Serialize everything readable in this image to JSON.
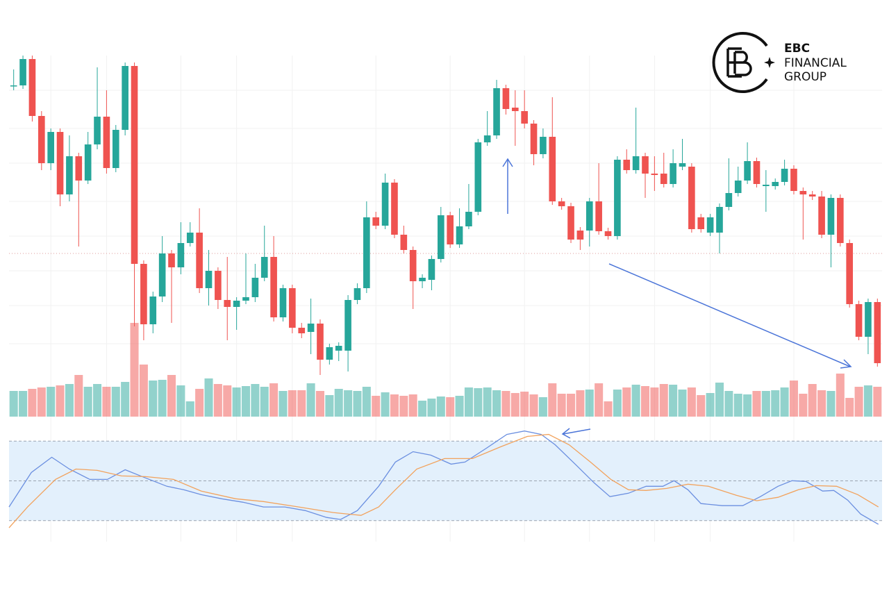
{
  "logo": {
    "name": "EBC",
    "line1": "FINANCIAL",
    "line2": "GROUP"
  },
  "chart_data": [
    {
      "type": "candlestick",
      "up_color": "#26a69a",
      "down_color": "#ef5350",
      "grid": true,
      "xlim": [
        -0.5,
        93.5
      ],
      "xticks": [
        4,
        10,
        18,
        24,
        30,
        39,
        47,
        55,
        62,
        69,
        75,
        84
      ],
      "ylim": [
        0,
        520
      ],
      "yticks": [
        105,
        160,
        210,
        260,
        310,
        365,
        415,
        470
      ],
      "price_line": 235,
      "open": [
        476,
        477,
        515,
        433,
        365,
        410,
        320,
        375,
        340,
        392,
        432,
        358,
        413,
        505,
        220,
        133,
        173,
        235,
        215,
        250,
        265,
        185,
        210,
        168,
        158,
        167,
        172,
        200,
        230,
        143,
        185,
        128,
        122,
        134,
        82,
        95,
        95,
        168,
        185,
        287,
        275,
        337,
        262,
        240,
        195,
        197,
        227,
        290,
        248,
        274,
        295,
        395,
        405,
        473,
        445,
        440,
        422,
        378,
        403,
        310,
        303,
        268,
        268,
        310,
        267,
        260,
        370,
        355,
        375,
        350,
        350,
        335,
        360,
        360,
        287,
        265,
        265,
        302,
        322,
        340,
        368,
        332,
        332,
        338,
        357,
        325,
        320,
        317,
        262,
        315,
        250,
        162,
        115,
        165
      ],
      "high": [
        500,
        520,
        520,
        440,
        415,
        415,
        405,
        380,
        410,
        503,
        470,
        420,
        510,
        510,
        225,
        180,
        260,
        240,
        280,
        280,
        300,
        240,
        215,
        230,
        172,
        235,
        220,
        275,
        260,
        190,
        190,
        135,
        170,
        140,
        105,
        107,
        175,
        192,
        310,
        295,
        350,
        342,
        275,
        245,
        205,
        232,
        302,
        295,
        300,
        335,
        400,
        440,
        485,
        478,
        470,
        470,
        427,
        415,
        460,
        315,
        308,
        273,
        315,
        365,
        272,
        375,
        385,
        445,
        380,
        375,
        380,
        385,
        400,
        365,
        292,
        292,
        307,
        372,
        360,
        395,
        373,
        355,
        343,
        370,
        362,
        330,
        325,
        325,
        320,
        320,
        255,
        167,
        170,
        170
      ],
      "low": [
        470,
        472,
        425,
        355,
        355,
        303,
        310,
        245,
        335,
        385,
        350,
        352,
        405,
        130,
        110,
        120,
        165,
        135,
        205,
        245,
        178,
        160,
        155,
        110,
        125,
        162,
        165,
        195,
        137,
        137,
        120,
        113,
        90,
        60,
        75,
        80,
        65,
        162,
        178,
        270,
        270,
        257,
        235,
        155,
        185,
        182,
        222,
        243,
        243,
        270,
        290,
        390,
        400,
        435,
        390,
        415,
        362,
        372,
        305,
        298,
        250,
        240,
        245,
        262,
        255,
        255,
        350,
        350,
        315,
        325,
        330,
        330,
        355,
        265,
        265,
        260,
        235,
        297,
        317,
        335,
        330,
        295,
        327,
        333,
        320,
        255,
        312,
        257,
        215,
        245,
        157,
        110,
        90,
        72
      ],
      "close": [
        477,
        515,
        433,
        365,
        410,
        320,
        375,
        340,
        392,
        432,
        358,
        413,
        505,
        220,
        133,
        173,
        235,
        215,
        250,
        265,
        185,
        210,
        168,
        158,
        167,
        172,
        200,
        230,
        143,
        185,
        128,
        120,
        134,
        82,
        100,
        102,
        168,
        185,
        287,
        275,
        337,
        262,
        240,
        195,
        200,
        227,
        290,
        248,
        274,
        295,
        395,
        405,
        473,
        443,
        440,
        422,
        378,
        403,
        310,
        303,
        255,
        255,
        310,
        267,
        260,
        370,
        355,
        375,
        350,
        348,
        335,
        365,
        365,
        270,
        270,
        287,
        302,
        322,
        340,
        368,
        335,
        334,
        338,
        357,
        325,
        320,
        317,
        262,
        315,
        250,
        162,
        115,
        165,
        77
      ]
    },
    {
      "type": "volume",
      "up_color": "#26a69a",
      "down_color": "#ef5350",
      "xlim": [
        -0.5,
        93.5
      ],
      "ylim": [
        0,
        520
      ],
      "values": [
        37,
        37,
        40,
        42,
        43,
        45,
        47,
        60,
        43,
        47,
        43,
        43,
        50,
        135,
        75,
        52,
        53,
        60,
        45,
        22,
        40,
        55,
        47,
        45,
        42,
        44,
        47,
        43,
        48,
        37,
        38,
        38,
        48,
        37,
        31,
        40,
        38,
        37,
        43,
        30,
        35,
        32,
        30,
        32,
        23,
        26,
        29,
        28,
        30,
        42,
        41,
        42,
        38,
        37,
        34,
        36,
        32,
        28,
        48,
        33,
        33,
        38,
        39,
        48,
        22,
        39,
        42,
        46,
        44,
        42,
        47,
        46,
        39,
        42,
        31,
        34,
        49,
        37,
        33,
        32,
        37,
        37,
        38,
        42,
        52,
        33,
        47,
        38,
        37,
        62,
        27,
        43,
        45,
        43
      ]
    },
    {
      "type": "line",
      "xlim": [
        -0.5,
        93.5
      ],
      "ylim": [
        0,
        100
      ],
      "yticks": [
        20,
        50,
        80
      ],
      "band": [
        20,
        80
      ],
      "band_color": "#e3f0fc",
      "series": [
        {
          "color": "#6b8fe0",
          "x": [
            -0.5,
            1.9,
            4.1,
            6.0,
            8.2,
            10.1,
            12.0,
            14.2,
            16.5,
            18.3,
            20.2,
            22.4,
            24.7,
            26.9,
            29.2,
            31.4,
            33.7,
            35.2,
            37.0,
            39.3,
            41.1,
            43.0,
            44.9,
            47.1,
            48.6,
            50.9,
            53.1,
            55.0,
            56.8,
            58.3,
            60.6,
            62.5,
            64.2,
            66.2,
            68.1,
            69.9,
            71.1,
            72.6,
            74.0,
            76.3,
            78.5,
            80.4,
            82.3,
            83.8,
            85.3,
            87.1,
            88.3,
            89.8,
            91.2,
            93.1
          ],
          "values": [
            30.3,
            56.3,
            67.8,
            58.9,
            51.1,
            51.1,
            58.4,
            52.2,
            45.9,
            43.3,
            39.6,
            36.5,
            33.9,
            30.3,
            30.3,
            27.6,
            22.4,
            20.9,
            27.6,
            45.9,
            64.2,
            72.0,
            69.4,
            62.6,
            64.2,
            74.6,
            85.0,
            87.6,
            85.0,
            77.2,
            61.6,
            48.5,
            38.1,
            40.7,
            45.9,
            45.9,
            50.1,
            43.3,
            32.9,
            31.3,
            31.3,
            38.1,
            45.9,
            50.1,
            49.6,
            42.3,
            42.8,
            35.5,
            25.0,
            17.2
          ]
        },
        {
          "color": "#f2a25c",
          "x": [
            -0.5,
            1.5,
            4.5,
            6.7,
            9.0,
            11.6,
            14.2,
            17.2,
            20.2,
            23.9,
            26.9,
            30.7,
            34.4,
            37.4,
            39.3,
            41.1,
            43.4,
            46.4,
            49.4,
            52.4,
            55.3,
            57.6,
            59.8,
            62.1,
            64.3,
            66.2,
            68.1,
            70.3,
            72.6,
            74.8,
            77.8,
            80.0,
            82.3,
            84.5,
            86.4,
            88.6,
            90.9,
            93.1
          ],
          "values": [
            14.6,
            30.3,
            51.1,
            58.9,
            57.9,
            53.7,
            53.2,
            51.1,
            42.3,
            36.5,
            34.4,
            30.3,
            26.1,
            24.0,
            30.3,
            43.3,
            58.9,
            66.8,
            66.8,
            75.6,
            83.5,
            85.0,
            77.2,
            64.2,
            51.1,
            43.3,
            42.8,
            44.3,
            47.5,
            45.9,
            39.1,
            35.0,
            37.6,
            43.3,
            46.4,
            45.9,
            39.6,
            30.3
          ]
        }
      ]
    }
  ]
}
